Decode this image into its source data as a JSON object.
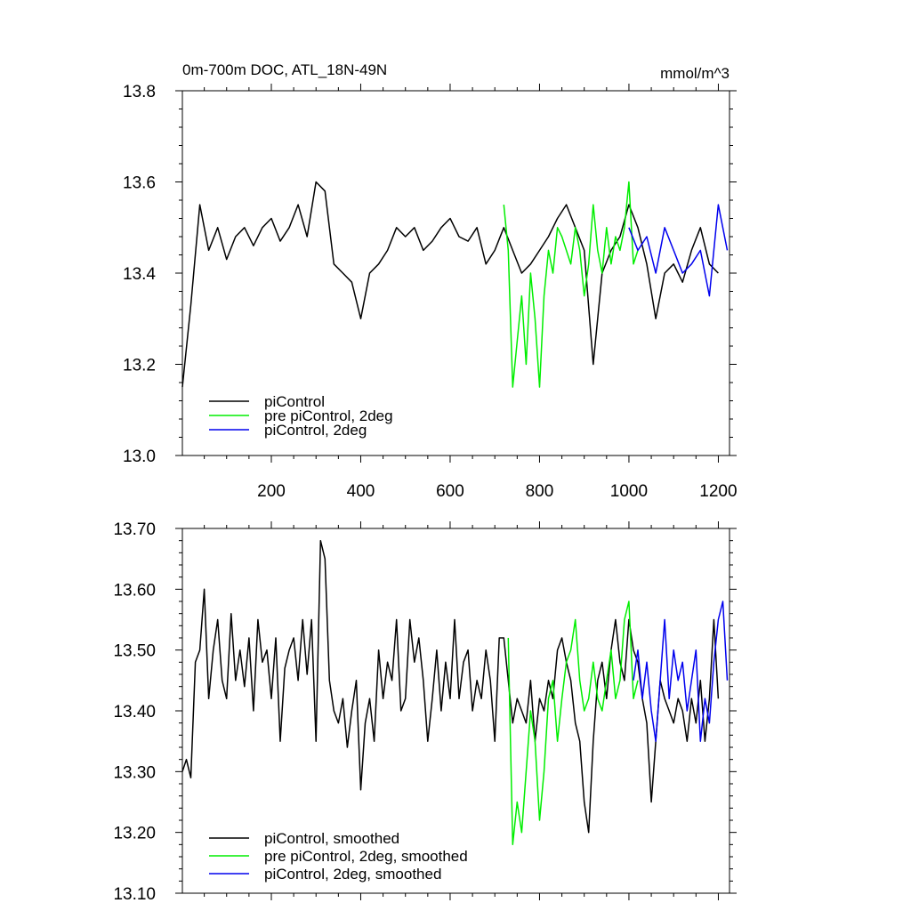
{
  "chart_data": [
    {
      "type": "line",
      "title": "0m-700m DOC, ATL_18N-49N",
      "units": "mmol/m^3",
      "xlim": [
        1,
        1225
      ],
      "ylim": [
        13.0,
        13.8
      ],
      "xticks": [
        200,
        400,
        600,
        800,
        1000,
        1200
      ],
      "xticklabels": [
        "200",
        "400",
        "600",
        "800",
        "1000",
        "1200"
      ],
      "yticks": [
        13.0,
        13.2,
        13.4,
        13.6,
        13.8
      ],
      "yticklabels": [
        "13.0",
        "13.2",
        "13.4",
        "13.6",
        "13.8"
      ],
      "legend_position": "bottom-left",
      "series": [
        {
          "name": "piControl",
          "color": "#000000",
          "x": [
            1,
            20,
            40,
            60,
            80,
            100,
            120,
            140,
            160,
            180,
            200,
            220,
            240,
            260,
            280,
            300,
            320,
            340,
            360,
            380,
            400,
            420,
            440,
            460,
            480,
            500,
            520,
            540,
            560,
            580,
            600,
            620,
            640,
            660,
            680,
            700,
            720,
            740,
            760,
            780,
            800,
            820,
            840,
            860,
            880,
            900,
            920,
            940,
            960,
            980,
            1000,
            1020,
            1040,
            1060,
            1080,
            1100,
            1120,
            1140,
            1160,
            1180,
            1200
          ],
          "values": [
            13.15,
            13.33,
            13.55,
            13.45,
            13.5,
            13.43,
            13.48,
            13.5,
            13.46,
            13.5,
            13.52,
            13.47,
            13.5,
            13.55,
            13.48,
            13.6,
            13.58,
            13.42,
            13.4,
            13.38,
            13.3,
            13.4,
            13.42,
            13.45,
            13.5,
            13.48,
            13.5,
            13.45,
            13.47,
            13.5,
            13.52,
            13.48,
            13.47,
            13.5,
            13.42,
            13.45,
            13.5,
            13.45,
            13.4,
            13.42,
            13.45,
            13.48,
            13.52,
            13.55,
            13.5,
            13.45,
            13.2,
            13.4,
            13.45,
            13.48,
            13.55,
            13.5,
            13.42,
            13.3,
            13.4,
            13.42,
            13.38,
            13.45,
            13.5,
            13.42,
            13.4
          ]
        },
        {
          "name": "pre piControl, 2deg",
          "color": "#00ee00",
          "x": [
            720,
            730,
            740,
            750,
            760,
            770,
            780,
            790,
            800,
            810,
            820,
            830,
            840,
            850,
            860,
            870,
            880,
            890,
            900,
            910,
            920,
            930,
            940,
            950,
            960,
            970,
            980,
            990,
            1000,
            1010,
            1020
          ],
          "values": [
            13.55,
            13.45,
            13.15,
            13.25,
            13.35,
            13.2,
            13.4,
            13.3,
            13.15,
            13.35,
            13.45,
            13.4,
            13.5,
            13.48,
            13.45,
            13.42,
            13.5,
            13.45,
            13.35,
            13.42,
            13.55,
            13.45,
            13.4,
            13.5,
            13.42,
            13.48,
            13.45,
            13.5,
            13.6,
            13.42,
            13.45
          ]
        },
        {
          "name": "piControl, 2deg",
          "color": "#0000ee",
          "x": [
            1000,
            1020,
            1040,
            1060,
            1080,
            1100,
            1120,
            1140,
            1160,
            1180,
            1200,
            1220
          ],
          "values": [
            13.5,
            13.45,
            13.48,
            13.4,
            13.5,
            13.45,
            13.4,
            13.42,
            13.45,
            13.35,
            13.55,
            13.45
          ]
        }
      ]
    },
    {
      "type": "line",
      "title": "",
      "xlim": [
        1,
        1225
      ],
      "ylim": [
        13.1,
        13.7
      ],
      "xticks": [
        200,
        400,
        600,
        800,
        1000,
        1200
      ],
      "yticks": [
        13.1,
        13.2,
        13.3,
        13.4,
        13.5,
        13.6,
        13.7
      ],
      "yticklabels": [
        "13.10",
        "13.20",
        "13.30",
        "13.40",
        "13.50",
        "13.60",
        "13.70"
      ],
      "legend_position": "bottom-left",
      "series": [
        {
          "name": "piControl, smoothed",
          "color": "#000000",
          "x": [
            1,
            10,
            20,
            30,
            40,
            50,
            60,
            70,
            80,
            90,
            100,
            110,
            120,
            130,
            140,
            150,
            160,
            170,
            180,
            190,
            200,
            210,
            220,
            230,
            240,
            250,
            260,
            270,
            280,
            290,
            300,
            310,
            320,
            330,
            340,
            350,
            360,
            370,
            380,
            390,
            400,
            410,
            420,
            430,
            440,
            450,
            460,
            470,
            480,
            490,
            500,
            510,
            520,
            530,
            540,
            550,
            560,
            570,
            580,
            590,
            600,
            610,
            620,
            630,
            640,
            650,
            660,
            670,
            680,
            690,
            700,
            710,
            720,
            730,
            740,
            750,
            760,
            770,
            780,
            790,
            800,
            810,
            820,
            830,
            840,
            850,
            860,
            870,
            880,
            890,
            900,
            910,
            920,
            930,
            940,
            950,
            960,
            970,
            980,
            990,
            1000,
            1010,
            1020,
            1030,
            1040,
            1050,
            1060,
            1070,
            1080,
            1090,
            1100,
            1110,
            1120,
            1130,
            1140,
            1150,
            1160,
            1170,
            1180,
            1190,
            1200
          ],
          "values": [
            13.3,
            13.32,
            13.29,
            13.48,
            13.5,
            13.6,
            13.42,
            13.5,
            13.55,
            13.45,
            13.42,
            13.56,
            13.45,
            13.5,
            13.44,
            13.52,
            13.4,
            13.55,
            13.48,
            13.5,
            13.42,
            13.52,
            13.35,
            13.47,
            13.5,
            13.52,
            13.45,
            13.55,
            13.46,
            13.55,
            13.35,
            13.68,
            13.65,
            13.45,
            13.4,
            13.38,
            13.42,
            13.34,
            13.4,
            13.45,
            13.27,
            13.38,
            13.42,
            13.35,
            13.5,
            13.42,
            13.48,
            13.45,
            13.55,
            13.4,
            13.42,
            13.55,
            13.48,
            13.52,
            13.45,
            13.35,
            13.42,
            13.5,
            13.4,
            13.48,
            13.42,
            13.55,
            13.42,
            13.48,
            13.5,
            13.4,
            13.45,
            13.42,
            13.5,
            13.45,
            13.35,
            13.52,
            13.52,
            13.45,
            13.38,
            13.42,
            13.4,
            13.38,
            13.45,
            13.35,
            13.42,
            13.4,
            13.45,
            13.42,
            13.5,
            13.52,
            13.48,
            13.45,
            13.38,
            13.35,
            13.25,
            13.2,
            13.35,
            13.45,
            13.48,
            13.42,
            13.5,
            13.55,
            13.48,
            13.45,
            13.55,
            13.5,
            13.48,
            13.42,
            13.38,
            13.25,
            13.35,
            13.45,
            13.42,
            13.4,
            13.38,
            13.42,
            13.4,
            13.35,
            13.42,
            13.38,
            13.45,
            13.35,
            13.42,
            13.55,
            13.42
          ]
        },
        {
          "name": "pre piControl, 2deg, smoothed",
          "color": "#00ee00",
          "x": [
            730,
            740,
            750,
            760,
            770,
            780,
            790,
            800,
            810,
            820,
            830,
            840,
            850,
            860,
            870,
            880,
            890,
            900,
            910,
            920,
            930,
            940,
            950,
            960,
            970,
            980,
            990,
            1000,
            1010,
            1020
          ],
          "values": [
            13.52,
            13.18,
            13.25,
            13.2,
            13.3,
            13.4,
            13.35,
            13.22,
            13.3,
            13.42,
            13.45,
            13.35,
            13.42,
            13.48,
            13.5,
            13.55,
            13.45,
            13.4,
            13.42,
            13.48,
            13.42,
            13.4,
            13.45,
            13.5,
            13.42,
            13.45,
            13.55,
            13.58,
            13.42,
            13.45
          ]
        },
        {
          "name": "piControl, 2deg, smoothed",
          "color": "#0000ee",
          "x": [
            1010,
            1020,
            1030,
            1040,
            1050,
            1060,
            1070,
            1080,
            1090,
            1100,
            1110,
            1120,
            1130,
            1140,
            1150,
            1160,
            1170,
            1180,
            1190,
            1200,
            1210,
            1220
          ],
          "values": [
            13.45,
            13.5,
            13.42,
            13.48,
            13.4,
            13.35,
            13.45,
            13.55,
            13.42,
            13.5,
            13.45,
            13.48,
            13.4,
            13.45,
            13.5,
            13.35,
            13.42,
            13.38,
            13.48,
            13.55,
            13.58,
            13.45
          ]
        }
      ]
    }
  ]
}
